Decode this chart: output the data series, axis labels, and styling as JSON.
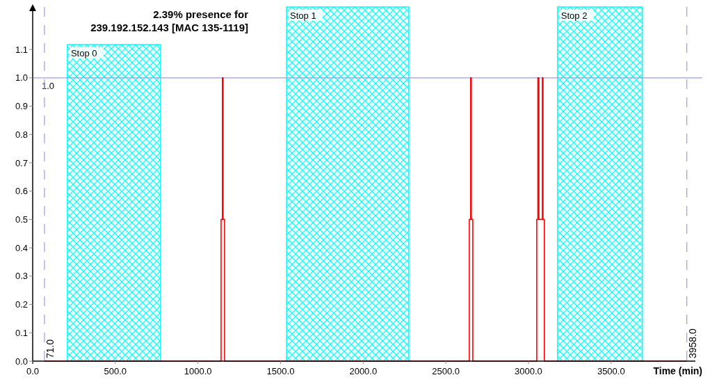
{
  "chart_data": {
    "type": "step",
    "title": "2.39% presence for\n239.192.152.143 [MAC 135-1119]",
    "xlabel": "Time (min)",
    "xlim": [
      0,
      4010
    ],
    "ylim": [
      0,
      1.25
    ],
    "xticks": [
      {
        "value": 0,
        "label": "0.0"
      },
      {
        "value": 500,
        "label": "500.0"
      },
      {
        "value": 1000,
        "label": "1000.0"
      },
      {
        "value": 1500,
        "label": "1500.0"
      },
      {
        "value": 2000,
        "label": "2000.0"
      },
      {
        "value": 2500,
        "label": "2500.0"
      },
      {
        "value": 3000,
        "label": "3000.0"
      },
      {
        "value": 3500,
        "label": "3500.0"
      }
    ],
    "yticks": [
      {
        "value": 0,
        "label": "0.0"
      },
      {
        "value": 0.1,
        "label": "0.1"
      },
      {
        "value": 0.2,
        "label": "0.2"
      },
      {
        "value": 0.3,
        "label": "0.3"
      },
      {
        "value": 0.4,
        "label": "0.4"
      },
      {
        "value": 0.5,
        "label": "0.5"
      },
      {
        "value": 0.6,
        "label": "0.6"
      },
      {
        "value": 0.7,
        "label": "0.7"
      },
      {
        "value": 0.8,
        "label": "0.8"
      },
      {
        "value": 0.9,
        "label": "0.9"
      },
      {
        "value": 1,
        "label": "1.0"
      },
      {
        "value": 1.1,
        "label": "1.1"
      }
    ],
    "series": [
      {
        "color": "#ff0000",
        "x": [
          71,
          1140,
          1148,
          1152,
          1161,
          2642,
          2650,
          2654,
          2663,
          3050,
          3057,
          3063,
          3084,
          3088,
          3096,
          3958
        ],
        "values": [
          0,
          0.5,
          1,
          0.5,
          0,
          0.5,
          1,
          0.5,
          0,
          0.5,
          1,
          0.5,
          1,
          0.5,
          0,
          0
        ]
      }
    ],
    "bands": [
      {
        "axis": "x",
        "from": 210,
        "to": 774,
        "label": "Stop 0",
        "color": "#00ffff"
      },
      {
        "axis": "x",
        "from": 1536,
        "to": 2276,
        "label": "Stop 1",
        "color": "#00ffff"
      },
      {
        "axis": "x",
        "from": 3176,
        "to": 3689,
        "label": "Stop 2",
        "color": "#00ffff"
      }
    ],
    "ref_lines": [
      {
        "axis": "y",
        "value": 1,
        "label": "1.0",
        "color": "#9999ff",
        "line_style": "solid"
      },
      {
        "axis": "x",
        "value": 71,
        "label": "71.0",
        "color": "#9999ff",
        "line_style": "dashed"
      },
      {
        "axis": "x",
        "value": 3958,
        "label": "3958.0",
        "color": "#9999ff",
        "line_style": "dashed"
      }
    ],
    "grid": false
  }
}
